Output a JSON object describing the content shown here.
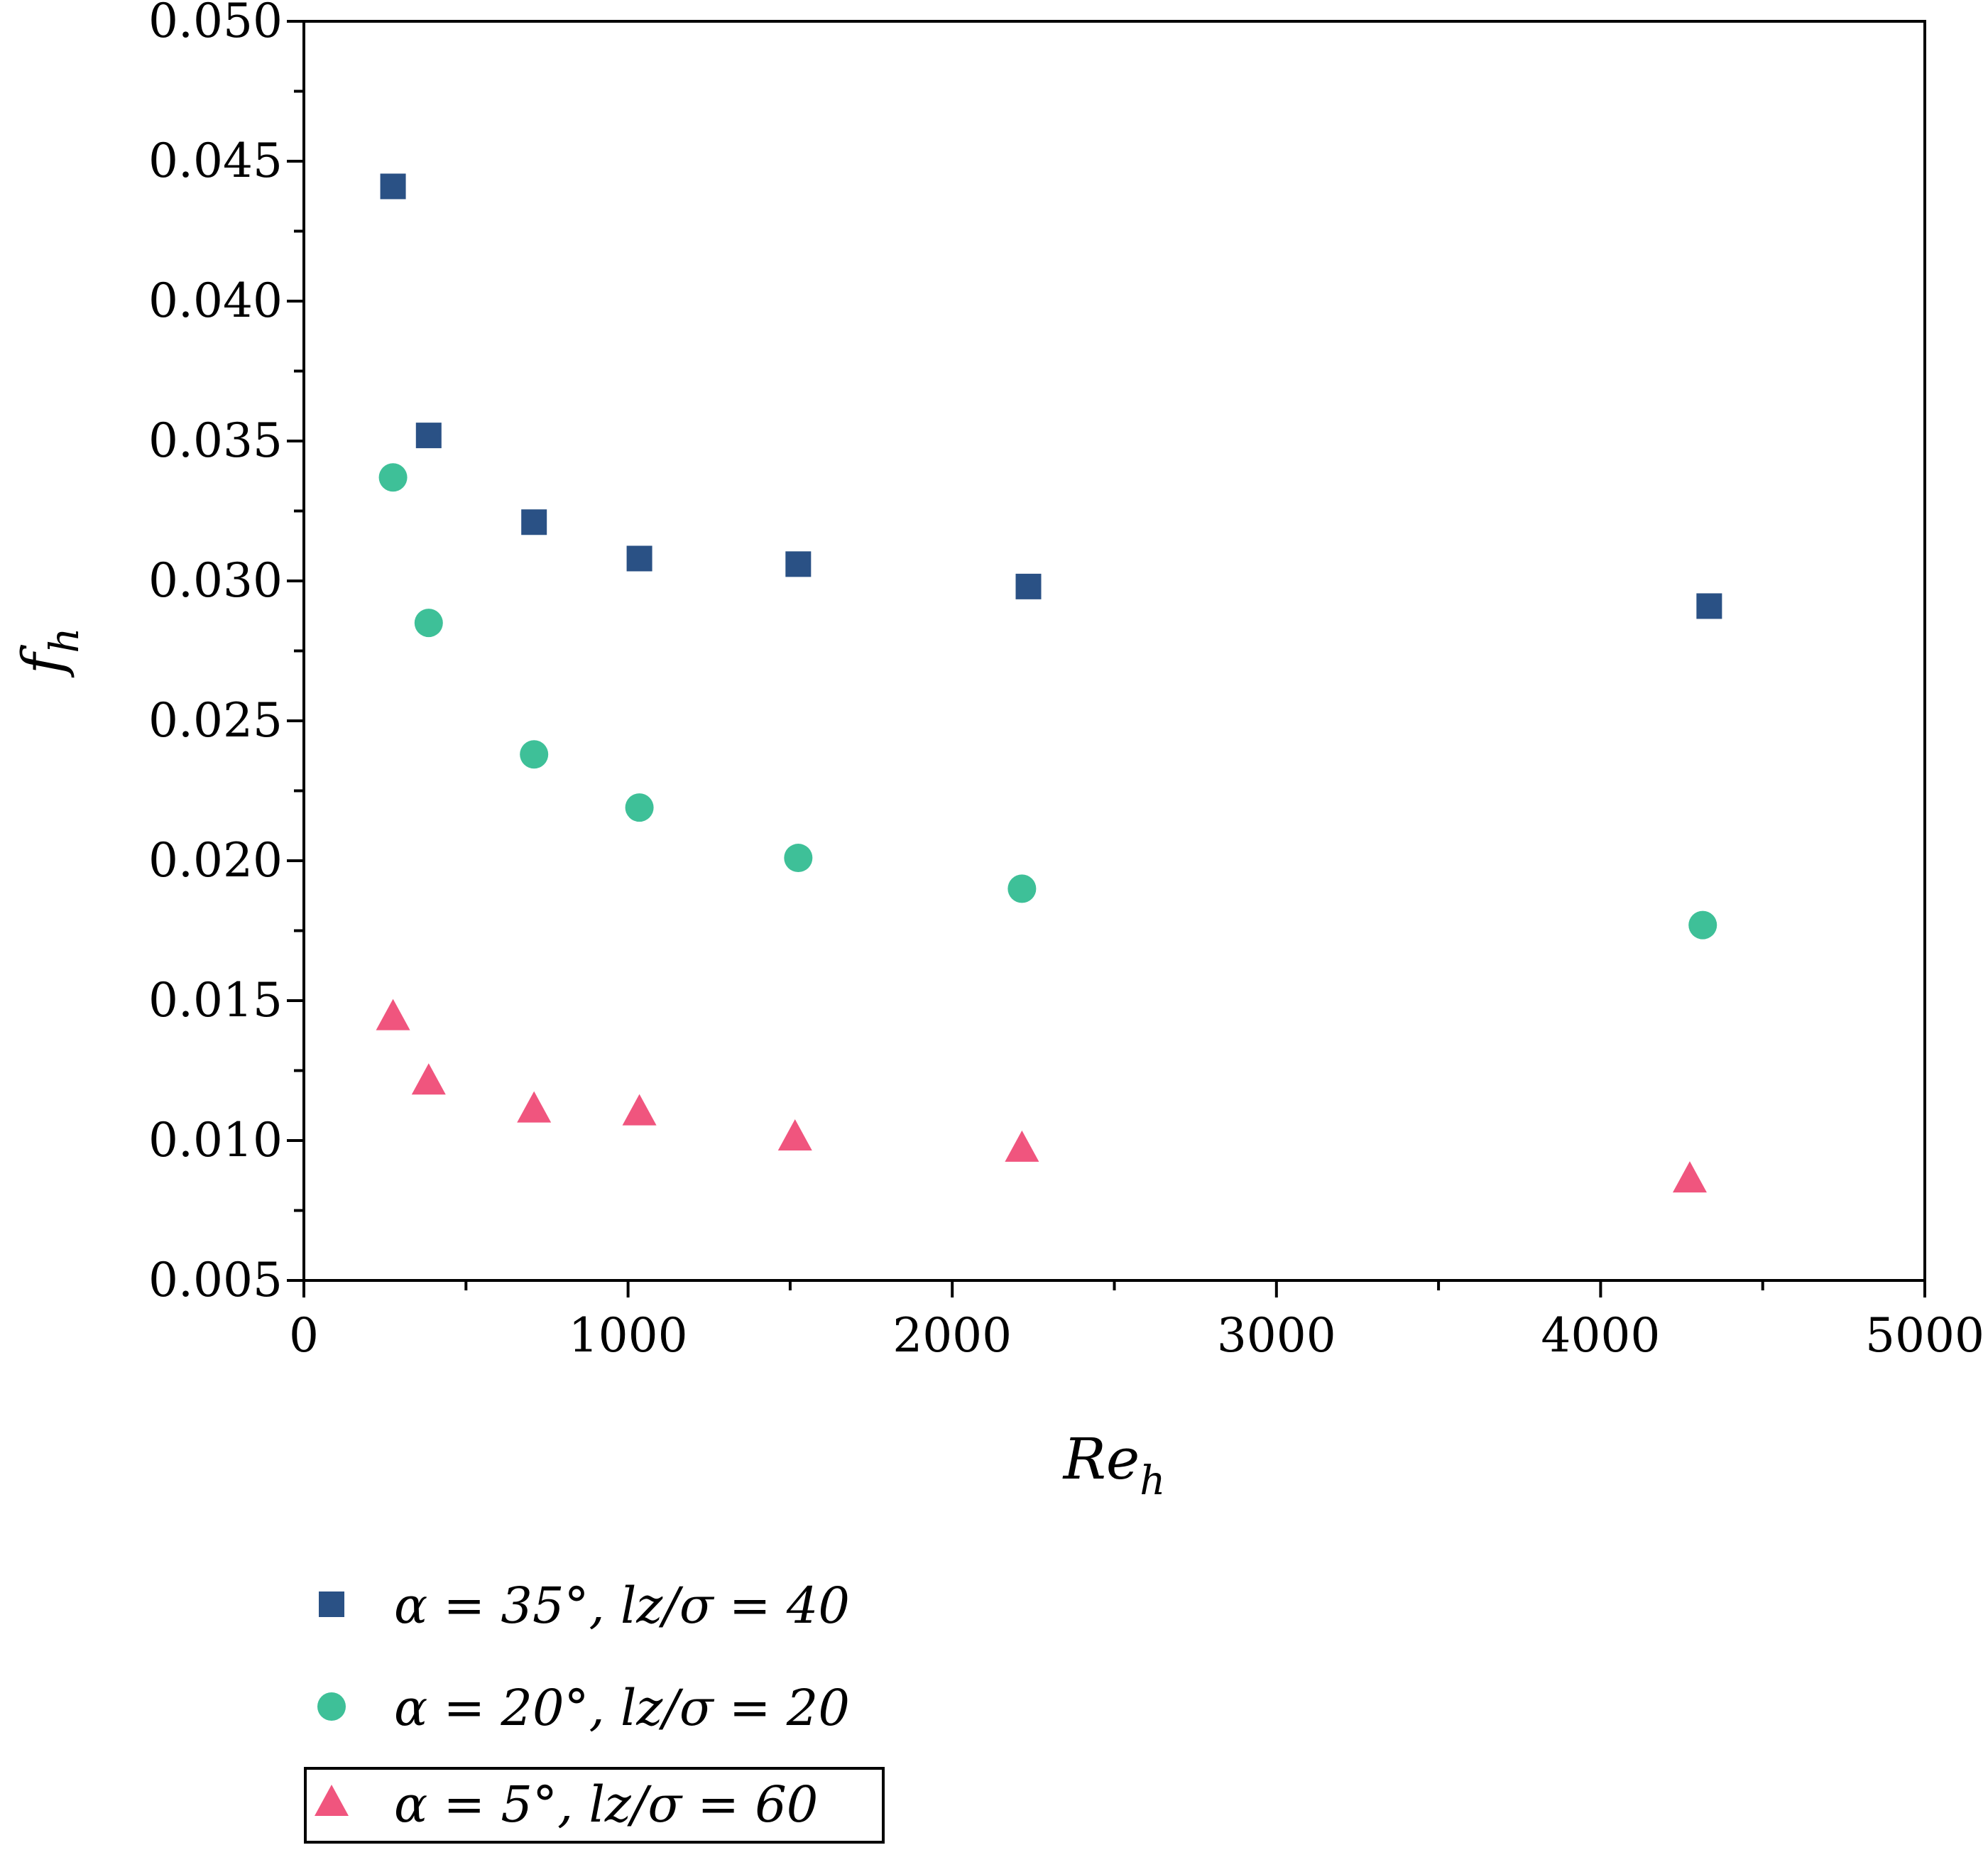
{
  "chart_data": {
    "type": "scatter",
    "xlabel": "Re",
    "xlabel_sub": "h",
    "ylabel": "f",
    "ylabel_sub": "h",
    "xlim": [
      0,
      5000
    ],
    "ylim": [
      0.005,
      0.05
    ],
    "xticks": [
      0,
      1000,
      2000,
      3000,
      4000,
      5000
    ],
    "xtick_labels": [
      "0",
      "1000",
      "2000",
      "3000",
      "4000",
      "5000"
    ],
    "yticks": [
      0.005,
      0.01,
      0.015,
      0.02,
      0.025,
      0.03,
      0.035,
      0.04,
      0.045,
      0.05
    ],
    "ytick_labels": [
      "0.005",
      "0.010",
      "0.015",
      "0.020",
      "0.025",
      "0.030",
      "0.035",
      "0.040",
      "0.045",
      "0.050"
    ],
    "grid": false,
    "legend_position": "bottom",
    "series": [
      {
        "name": "α = 35°, lz/σ = 40",
        "marker": "square",
        "color": "#2a5185",
        "x": [
          275,
          385,
          710,
          1035,
          1525,
          2235,
          4335
        ],
        "y": [
          0.0441,
          0.0352,
          0.0321,
          0.0308,
          0.0306,
          0.0298,
          0.0291
        ]
      },
      {
        "name": "α = 20°, lz/σ = 20",
        "marker": "circle",
        "color": "#3ec098",
        "x": [
          275,
          385,
          710,
          1035,
          1525,
          2215,
          4315
        ],
        "y": [
          0.0337,
          0.0285,
          0.0238,
          0.0219,
          0.0201,
          0.019,
          0.0177
        ]
      },
      {
        "name": "α = 5°, lz/σ = 60",
        "marker": "triangle",
        "color": "#f0557e",
        "x": [
          275,
          385,
          710,
          1035,
          1515,
          2215,
          4275
        ],
        "y": [
          0.0144,
          0.0121,
          0.0111,
          0.011,
          0.0101,
          0.0097,
          0.0086
        ]
      }
    ]
  }
}
